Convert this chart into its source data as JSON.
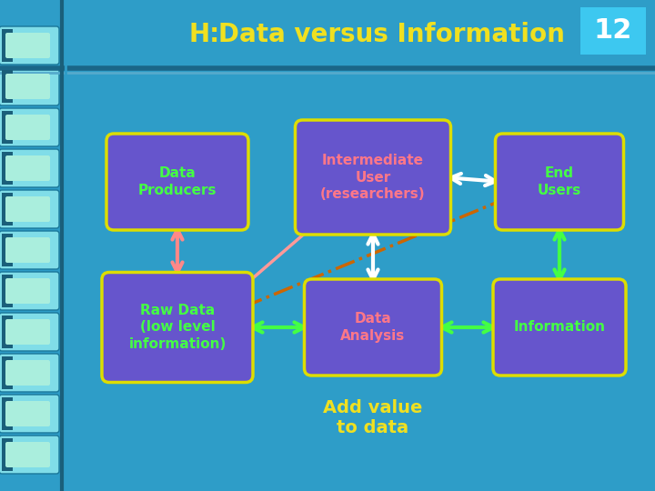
{
  "title_h": "H:",
  "title_main": "Data versus Information",
  "slide_number": "12",
  "bg_color": "#2e9dc8",
  "title_bar_color": "#2e9dc8",
  "title_text_color": "#f0e020",
  "slide_num_bg": "#3dc8f0",
  "slide_num_text": "#ffffff",
  "box_fill": "#6655cc",
  "box_edge": "#dddd00",
  "box_text_green": "#44ff44",
  "box_text_pink": "#ff7788",
  "add_value_color": "#f0e020",
  "separator_color": "#1a6688",
  "separator_color2": "#55aacc"
}
